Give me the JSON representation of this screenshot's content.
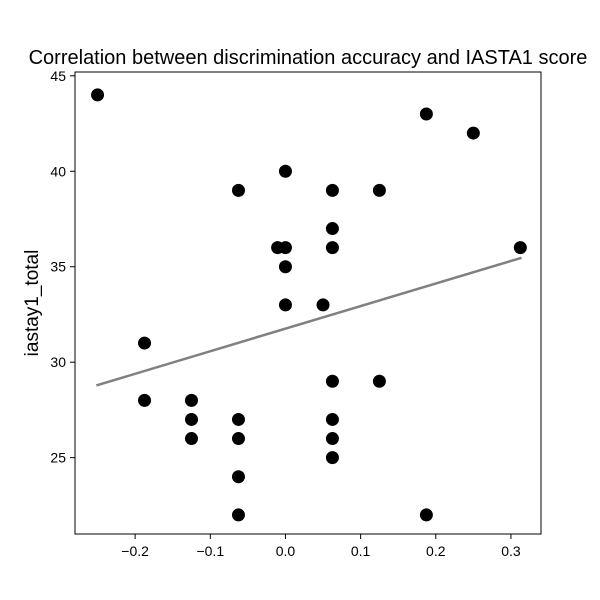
{
  "chart_data": {
    "type": "scatter",
    "title": "Correlation between discrimination accuracy and IASTA1 score",
    "xlabel": "",
    "ylabel": "iastay1_total",
    "xlim": [
      -0.28,
      0.34
    ],
    "ylim": [
      21,
      45.2
    ],
    "xticks": [
      -0.2,
      -0.1,
      0.0,
      0.1,
      0.2,
      0.3
    ],
    "xtick_labels": [
      "−0.2",
      "−0.1",
      "0.0",
      "0.1",
      "0.2",
      "0.3"
    ],
    "yticks": [
      25,
      30,
      35,
      40,
      45
    ],
    "ytick_labels": [
      "25",
      "30",
      "35",
      "40",
      "45"
    ],
    "grid": false,
    "colors": {
      "points": "#000000",
      "trend": "#808080"
    },
    "points": [
      {
        "x": -0.25,
        "y": 44
      },
      {
        "x": 0.1875,
        "y": 43
      },
      {
        "x": 0.25,
        "y": 42
      },
      {
        "x": 0.0,
        "y": 40
      },
      {
        "x": -0.0625,
        "y": 39
      },
      {
        "x": 0.0625,
        "y": 39
      },
      {
        "x": 0.125,
        "y": 39
      },
      {
        "x": 0.0625,
        "y": 37
      },
      {
        "x": -0.0104,
        "y": 36
      },
      {
        "x": 0.0,
        "y": 36
      },
      {
        "x": 0.0625,
        "y": 36
      },
      {
        "x": 0.3125,
        "y": 36
      },
      {
        "x": 0.0,
        "y": 35
      },
      {
        "x": 0.0,
        "y": 33
      },
      {
        "x": 0.05,
        "y": 33
      },
      {
        "x": -0.1875,
        "y": 31
      },
      {
        "x": 0.0625,
        "y": 29
      },
      {
        "x": 0.125,
        "y": 29
      },
      {
        "x": -0.1875,
        "y": 28
      },
      {
        "x": -0.125,
        "y": 28
      },
      {
        "x": -0.125,
        "y": 27
      },
      {
        "x": -0.0625,
        "y": 27
      },
      {
        "x": 0.0625,
        "y": 27
      },
      {
        "x": -0.125,
        "y": 26
      },
      {
        "x": -0.0625,
        "y": 26
      },
      {
        "x": 0.0625,
        "y": 26
      },
      {
        "x": 0.0625,
        "y": 25
      },
      {
        "x": -0.0625,
        "y": 24
      },
      {
        "x": -0.0625,
        "y": 22
      },
      {
        "x": 0.1875,
        "y": 22
      }
    ],
    "trend_line": {
      "x": [
        -0.25,
        0.3125
      ],
      "y": [
        28.8,
        35.45
      ]
    }
  }
}
